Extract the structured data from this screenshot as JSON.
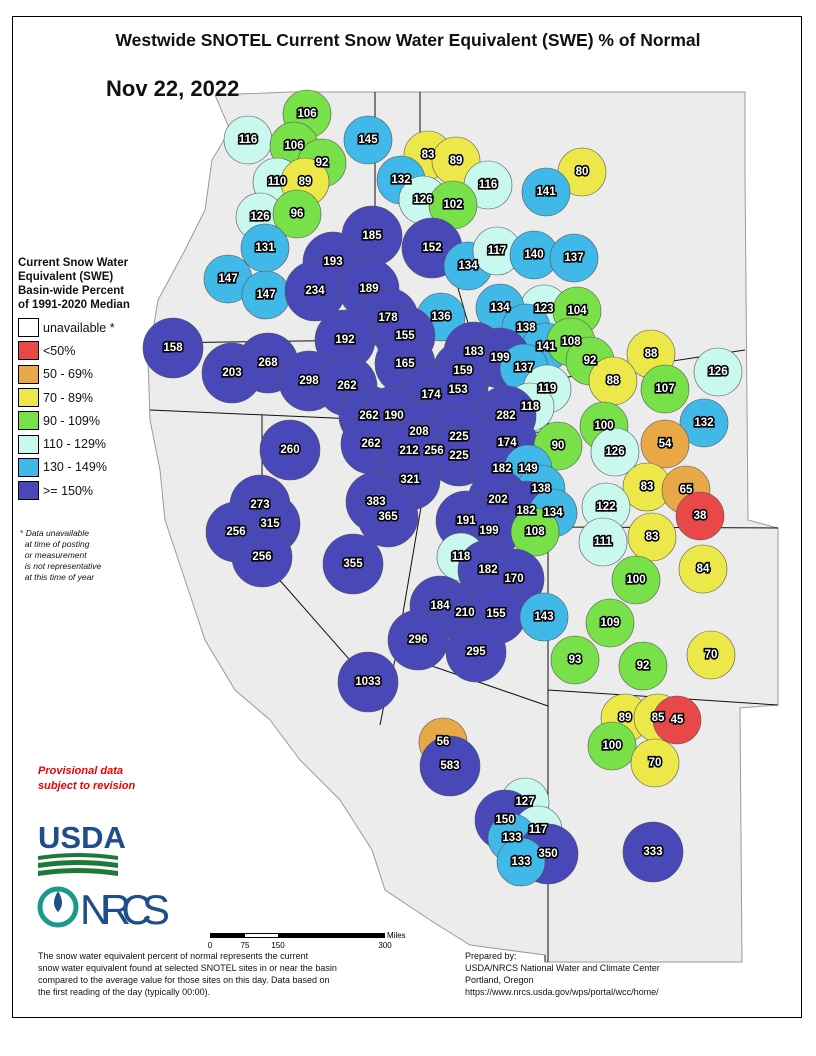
{
  "title": "Westwide SNOTEL Current Snow Water Equivalent (SWE) % of Normal",
  "date": "Nov 22, 2022",
  "legend": {
    "heading": [
      "Current Snow Water",
      "Equivalent (SWE)",
      "Basin-wide Percent",
      "of 1991-2020 Median"
    ],
    "classes": [
      {
        "label": "unavailable *",
        "color": "#ffffff"
      },
      {
        "label": "<50%",
        "color": "#e84848"
      },
      {
        "label": "50 - 69%",
        "color": "#e8a848"
      },
      {
        "label": "70 - 89%",
        "color": "#ece84a"
      },
      {
        "label": "90 - 109%",
        "color": "#78e048"
      },
      {
        "label": "110 - 129%",
        "color": "#c8f8ee"
      },
      {
        "label": "130 - 149%",
        "color": "#40b8e8"
      },
      {
        "label": ">= 150%",
        "color": "#4848b8"
      }
    ],
    "footnote_star": "*",
    "footnote": [
      "Data unavailable",
      "at time of posting",
      "or measurement",
      "is not representative",
      "at this time of year"
    ]
  },
  "provisional": [
    "Provisional data",
    "subject to revision"
  ],
  "logos": {
    "usda": "USDA",
    "nrcs": "NRCS"
  },
  "scale": {
    "ticks": [
      "0",
      "75",
      "150",
      "300"
    ],
    "unit": "Miles"
  },
  "description": [
    "The snow water equivalent percent of normal represents the current",
    "snow water equivalent found at selected SNOTEL sites in or near the basin",
    "compared to the average value for those sites on this day. Data based on",
    "the first reading of the day (typically 00:00)."
  ],
  "prepared": [
    "Prepared by:",
    "USDA/NRCS National Water and Climate Center",
    "Portland, Oregon",
    "https://www.nrcs.usda.gov/wps/portal/wcc/home/"
  ],
  "basins": [
    "106",
    "116",
    "106",
    "92",
    "145",
    "83",
    "89",
    "116",
    "80",
    "110",
    "89",
    "132",
    "141",
    "126",
    "102",
    "126",
    "96",
    "185",
    "152",
    "131",
    "134",
    "117",
    "140",
    "137",
    "193",
    "147",
    "147",
    "234",
    "189",
    "123",
    "104",
    "134",
    "136",
    "178",
    "138",
    "155",
    "192",
    "141",
    "108",
    "158",
    "183",
    "199",
    "92",
    "88",
    "126",
    "137",
    "203",
    "268",
    "165",
    "159",
    "298",
    "262",
    "88",
    "107",
    "119",
    "174",
    "153",
    "118",
    "262",
    "190",
    "282",
    "100",
    "132",
    "208",
    "225",
    "260",
    "262",
    "212",
    "256",
    "225",
    "174",
    "54",
    "126",
    "90",
    "182",
    "149",
    "321",
    "83",
    "65",
    "138",
    "202",
    "383",
    "273",
    "122",
    "38",
    "182",
    "134",
    "365",
    "315",
    "191",
    "199",
    "108",
    "256",
    "111",
    "83",
    "256",
    "118",
    "355",
    "182",
    "84",
    "170",
    "100",
    "184",
    "210",
    "155",
    "143",
    "109",
    "296",
    "295",
    "93",
    "92",
    "70",
    "1033",
    "89",
    "85",
    "45",
    "100",
    "56",
    "70",
    "583",
    "127",
    "150",
    "117",
    "133",
    "350",
    "133",
    "333"
  ]
}
